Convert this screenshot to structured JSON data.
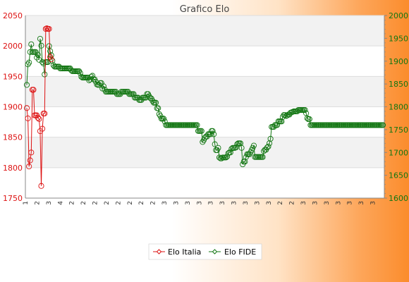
{
  "colors": {
    "italia": "#dd1111",
    "fide": "#127612",
    "band": "#f2f2f2",
    "grid": "#dddddd"
  },
  "chart_data": {
    "type": "line",
    "title": "Grafico Elo",
    "grid": true,
    "legend_position": "bottom",
    "legend": [
      "Elo Italia",
      "Elo FIDE"
    ],
    "y_left": {
      "ylim": [
        1750,
        2050
      ],
      "ticks": [
        1750,
        1800,
        1850,
        1900,
        1950,
        2000,
        2050
      ]
    },
    "y_right": {
      "ylim": [
        1600,
        2000
      ],
      "ticks": [
        1600,
        1650,
        1700,
        1750,
        1800,
        1850,
        1900,
        1950,
        2000
      ]
    },
    "x_tick_labels": [
      "1",
      "2",
      "3",
      "4",
      "2",
      "2",
      "2",
      "2",
      "2",
      "2",
      "2",
      "2",
      "3",
      "3",
      "3",
      "3",
      "3",
      "3",
      "3",
      "3",
      "3",
      "3",
      "2",
      "2",
      "3",
      "3",
      "3",
      "3",
      "3",
      "3",
      "3"
    ],
    "series": [
      {
        "name": "Elo Italia",
        "axis": "left",
        "values": [
          1898,
          1881,
          1802,
          1812,
          1825,
          1928,
          1928,
          1886,
          1886,
          1886,
          1882,
          1880,
          1860,
          1770,
          1864,
          1889,
          1889,
          2028,
          2029,
          2028,
          2028,
          1982,
          1978
        ]
      },
      {
        "name": "Elo FIDE",
        "axis": "right",
        "values": [
          1848,
          1893,
          1897,
          1920,
          1937,
          1920,
          1920,
          1920,
          1920,
          1908,
          1914,
          1903,
          1949,
          1934,
          1898,
          1895,
          1871,
          1898,
          1898,
          1898,
          1933,
          1922,
          1913,
          1901,
          1891,
          1888,
          1888,
          1888,
          1888,
          1888,
          1884,
          1884,
          1884,
          1884,
          1884,
          1884,
          1884,
          1884,
          1884,
          1884,
          1880,
          1878,
          1878,
          1878,
          1878,
          1878,
          1878,
          1878,
          1874,
          1866,
          1864,
          1864,
          1864,
          1864,
          1864,
          1864,
          1858,
          1860,
          1866,
          1868,
          1860,
          1860,
          1855,
          1849,
          1848,
          1848,
          1852,
          1852,
          1840,
          1845,
          1838,
          1833,
          1833,
          1833,
          1833,
          1833,
          1833,
          1833,
          1833,
          1833,
          1833,
          1828,
          1828,
          1828,
          1828,
          1833,
          1833,
          1833,
          1833,
          1833,
          1833,
          1833,
          1828,
          1828,
          1828,
          1828,
          1828,
          1820,
          1820,
          1820,
          1820,
          1815,
          1815,
          1815,
          1820,
          1820,
          1820,
          1820,
          1828,
          1828,
          1823,
          1819,
          1818,
          1813,
          1809,
          1809,
          1809,
          1797,
          1797,
          1784,
          1780,
          1774,
          1774,
          1774,
          1768,
          1760,
          1760,
          1760,
          1760,
          1760,
          1760,
          1760,
          1760,
          1760,
          1760,
          1760,
          1760,
          1760,
          1760,
          1760,
          1760,
          1760,
          1760,
          1760,
          1760,
          1760,
          1760,
          1760,
          1760,
          1760,
          1760,
          1760,
          1760,
          1760,
          1747,
          1747,
          1747,
          1747,
          1723,
          1727,
          1732,
          1735,
          1735,
          1740,
          1740,
          1740,
          1747,
          1747,
          1740,
          1718,
          1705,
          1705,
          1710,
          1689,
          1687,
          1687,
          1689,
          1689,
          1689,
          1689,
          1691,
          1698,
          1700,
          1700,
          1708,
          1710,
          1710,
          1710,
          1711,
          1718,
          1720,
          1720,
          1720,
          1710,
          1674,
          1680,
          1680,
          1690,
          1696,
          1696,
          1696,
          1700,
          1705,
          1710,
          1715,
          1690,
          1690,
          1690,
          1690,
          1690,
          1690,
          1690,
          1690,
          1703,
          1706,
          1706,
          1711,
          1713,
          1720,
          1730,
          1756,
          1756,
          1756,
          1760,
          1760,
          1760,
          1768,
          1768,
          1768,
          1768,
          1778,
          1782,
          1782,
          1780,
          1781,
          1783,
          1783,
          1787,
          1788,
          1789,
          1790,
          1790,
          1790,
          1790,
          1793,
          1793,
          1793,
          1793,
          1793,
          1793,
          1793,
          1786,
          1775,
          1773,
          1773,
          1760,
          1760,
          1760,
          1760,
          1760,
          1760,
          1760,
          1760,
          1760,
          1760,
          1760,
          1760,
          1760,
          1760,
          1760,
          1760,
          1760,
          1760,
          1760,
          1760,
          1760,
          1760,
          1760,
          1760,
          1760,
          1760,
          1760,
          1760,
          1760,
          1760,
          1760,
          1760,
          1760,
          1760,
          1760,
          1760,
          1760,
          1760,
          1760,
          1760,
          1760,
          1760,
          1760,
          1760,
          1760,
          1760,
          1760,
          1760,
          1760,
          1760,
          1760,
          1760,
          1760,
          1760,
          1760,
          1760,
          1760,
          1760,
          1760,
          1760,
          1760,
          1760,
          1760,
          1760,
          1760,
          1760
        ]
      }
    ]
  }
}
